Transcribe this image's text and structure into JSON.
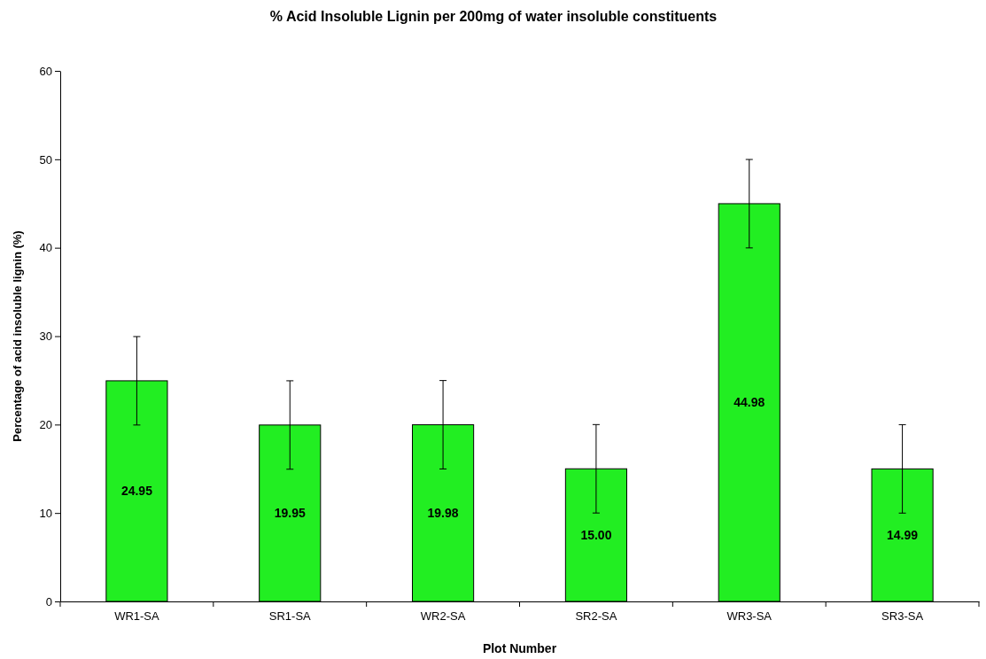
{
  "chart_data": {
    "type": "bar",
    "title": "% Acid Insoluble Lignin per 200mg of water insoluble constituents",
    "xlabel": "Plot Number",
    "ylabel": "Percentage of acid insoluble lignin (%)",
    "categories": [
      "WR1-SA",
      "SR1-SA",
      "WR2-SA",
      "SR2-SA",
      "WR3-SA",
      "SR3-SA"
    ],
    "values": [
      24.95,
      19.95,
      19.98,
      15.0,
      44.98,
      14.99
    ],
    "value_labels": [
      "24.95",
      "19.95",
      "19.98",
      "15.00",
      "44.98",
      "14.99"
    ],
    "errors": [
      5,
      5,
      5,
      5,
      5,
      5
    ],
    "color": "#22ee22",
    "ylim": [
      0,
      60
    ],
    "yticks": [
      0,
      10,
      20,
      30,
      40,
      50,
      60
    ],
    "grid": false
  }
}
